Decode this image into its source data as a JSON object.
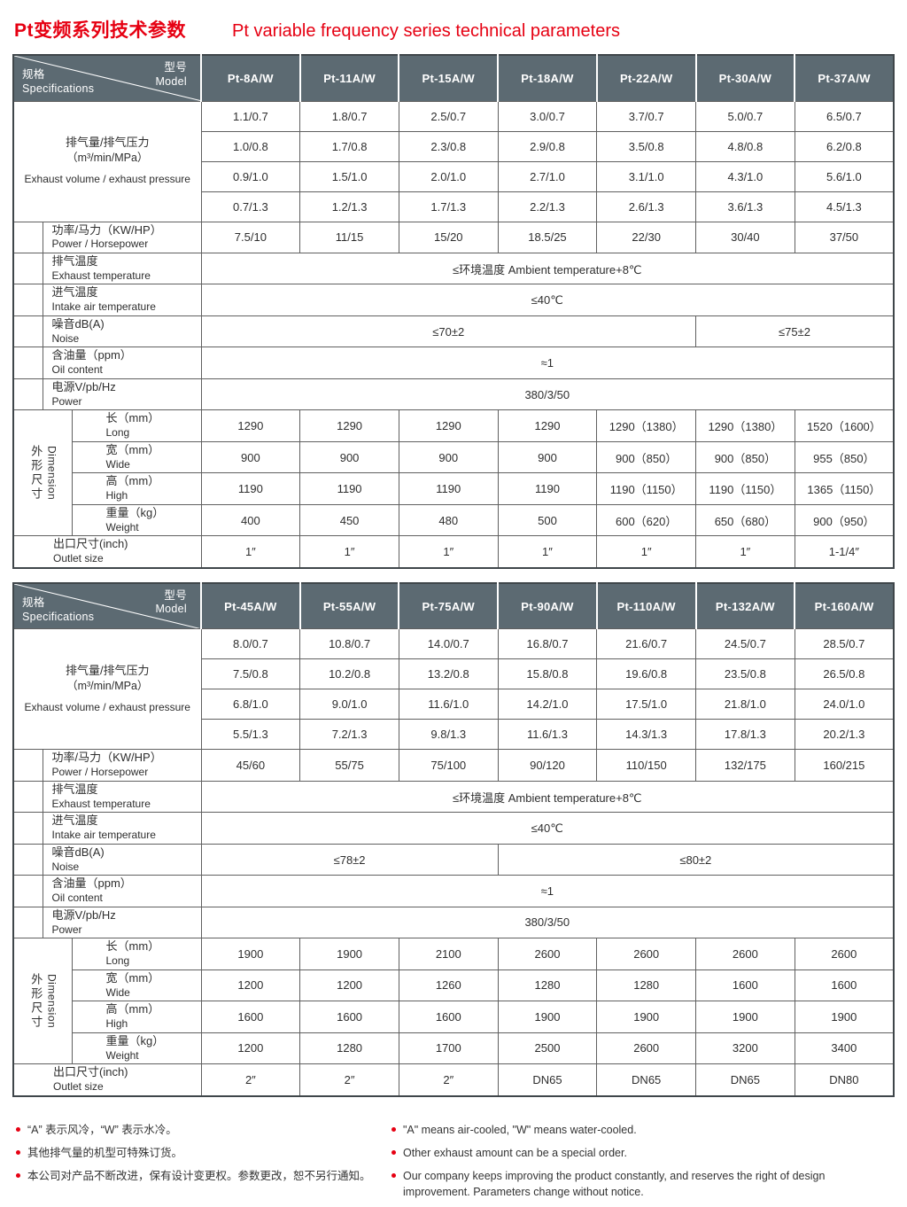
{
  "page": {
    "title_cn": "Pt变频系列技术参数",
    "title_en": "Pt variable frequency series technical parameters",
    "accent_color": "#e60012",
    "header_bg": "#5c6a72"
  },
  "labels": {
    "spec_cn": "规格",
    "spec_en": "Specifications",
    "model_cn": "型号",
    "model_en": "Model",
    "volume_cn": "排气量/排气压力",
    "volume_unit": "（m³/min/MPa）",
    "volume_en": "Exhaust volume / exhaust pressure",
    "power_cn": "功率/马力（KW/HP）",
    "power_en": "Power / Horsepower",
    "exhaust_temp_cn": "排气温度",
    "exhaust_temp_en": "Exhaust temperature",
    "intake_temp_cn": "进气温度",
    "intake_temp_en": "Intake air temperature",
    "noise_cn": "噪音dB(A)",
    "noise_en": "Noise",
    "oil_cn": "含油量（ppm）",
    "oil_en": "Oil content",
    "psu_cn": "电源V/pb/Hz",
    "psu_en": "Power",
    "dim_cn": "外形尺寸",
    "dim_en": "Dimension",
    "long_cn": "长（mm）",
    "long_en": "Long",
    "wide_cn": "宽（mm）",
    "wide_en": "Wide",
    "high_cn": "高（mm）",
    "high_en": "High",
    "weight_cn": "重量（kg）",
    "weight_en": "Weight",
    "outlet_cn": "出口尺寸(inch)",
    "outlet_en": "Outlet size"
  },
  "tables": [
    {
      "models": [
        "Pt-8A/W",
        "Pt-11A/W",
        "Pt-15A/W",
        "Pt-18A/W",
        "Pt-22A/W",
        "Pt-30A/W",
        "Pt-37A/W"
      ],
      "volume_rows": [
        [
          "1.1/0.7",
          "1.8/0.7",
          "2.5/0.7",
          "3.0/0.7",
          "3.7/0.7",
          "5.0/0.7",
          "6.5/0.7"
        ],
        [
          "1.0/0.8",
          "1.7/0.8",
          "2.3/0.8",
          "2.9/0.8",
          "3.5/0.8",
          "4.8/0.8",
          "6.2/0.8"
        ],
        [
          "0.9/1.0",
          "1.5/1.0",
          "2.0/1.0",
          "2.7/1.0",
          "3.1/1.0",
          "4.3/1.0",
          "5.6/1.0"
        ],
        [
          "0.7/1.3",
          "1.2/1.3",
          "1.7/1.3",
          "2.2/1.3",
          "2.6/1.3",
          "3.6/1.3",
          "4.5/1.3"
        ]
      ],
      "power": [
        "7.5/10",
        "11/15",
        "15/20",
        "18.5/25",
        "22/30",
        "30/40",
        "37/50"
      ],
      "exhaust_temp": "≤环境温度 Ambient temperature+8℃",
      "intake_temp": "≤40℃",
      "noise": {
        "left": "≤70±2",
        "left_span": 5,
        "right": "≤75±2",
        "right_span": 2
      },
      "oil": "≈1",
      "psu": "380/3/50",
      "long": [
        "1290",
        "1290",
        "1290",
        "1290",
        "1290（1380）",
        "1290（1380）",
        "1520（1600）"
      ],
      "wide": [
        "900",
        "900",
        "900",
        "900",
        "900（850）",
        "900（850）",
        "955（850）"
      ],
      "high": [
        "1190",
        "1190",
        "1190",
        "1190",
        "1190（1150）",
        "1190（1150）",
        "1365（1150）"
      ],
      "weight": [
        "400",
        "450",
        "480",
        "500",
        "600（620）",
        "650（680）",
        "900（950）"
      ],
      "outlet": [
        "1″",
        "1″",
        "1″",
        "1″",
        "1″",
        "1″",
        "1-1/4″"
      ]
    },
    {
      "models": [
        "Pt-45A/W",
        "Pt-55A/W",
        "Pt-75A/W",
        "Pt-90A/W",
        "Pt-110A/W",
        "Pt-132A/W",
        "Pt-160A/W"
      ],
      "volume_rows": [
        [
          "8.0/0.7",
          "10.8/0.7",
          "14.0/0.7",
          "16.8/0.7",
          "21.6/0.7",
          "24.5/0.7",
          "28.5/0.7"
        ],
        [
          "7.5/0.8",
          "10.2/0.8",
          "13.2/0.8",
          "15.8/0.8",
          "19.6/0.8",
          "23.5/0.8",
          "26.5/0.8"
        ],
        [
          "6.8/1.0",
          "9.0/1.0",
          "11.6/1.0",
          "14.2/1.0",
          "17.5/1.0",
          "21.8/1.0",
          "24.0/1.0"
        ],
        [
          "5.5/1.3",
          "7.2/1.3",
          "9.8/1.3",
          "11.6/1.3",
          "14.3/1.3",
          "17.8/1.3",
          "20.2/1.3"
        ]
      ],
      "power": [
        "45/60",
        "55/75",
        "75/100",
        "90/120",
        "110/150",
        "132/175",
        "160/215"
      ],
      "exhaust_temp": "≤环境温度 Ambient temperature+8℃",
      "intake_temp": "≤40℃",
      "noise": {
        "left": "≤78±2",
        "left_span": 3,
        "right": "≤80±2",
        "right_span": 4
      },
      "oil": "≈1",
      "psu": "380/3/50",
      "long": [
        "1900",
        "1900",
        "2100",
        "2600",
        "2600",
        "2600",
        "2600"
      ],
      "wide": [
        "1200",
        "1200",
        "1260",
        "1280",
        "1280",
        "1600",
        "1600"
      ],
      "high": [
        "1600",
        "1600",
        "1600",
        "1900",
        "1900",
        "1900",
        "1900"
      ],
      "weight": [
        "1200",
        "1280",
        "1700",
        "2500",
        "2600",
        "3200",
        "3400"
      ],
      "outlet": [
        "2″",
        "2″",
        "2″",
        "DN65",
        "DN65",
        "DN65",
        "DN80"
      ]
    }
  ],
  "notes": {
    "cn": [
      "“A” 表示风冷，“W” 表示水冷。",
      "其他排气量的机型可特殊订货。",
      "本公司对产品不断改进，保有设计变更权。参数更改，恕不另行通知。"
    ],
    "en": [
      "\"A\" means air-cooled, \"W\" means water-cooled.",
      "Other exhaust amount can be a special order.",
      "Our company keeps improving the product constantly, and reserves the right of design improvement. Parameters change without notice."
    ]
  }
}
